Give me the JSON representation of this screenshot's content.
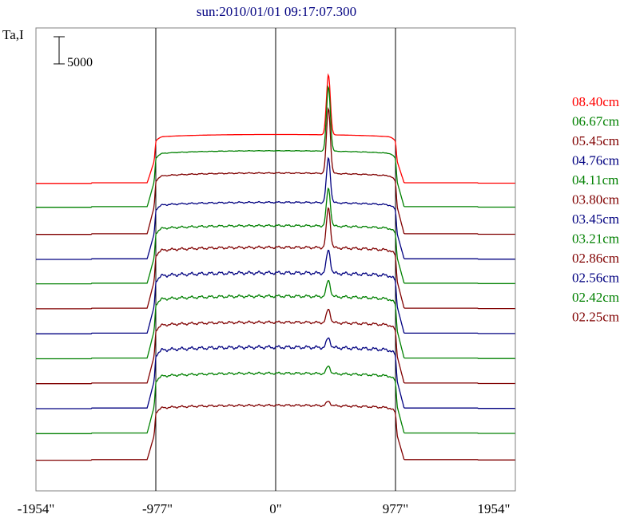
{
  "chart_data": {
    "type": "line",
    "title": "sun:2010/01/01 09:17:07.300",
    "ylabel": "Ta,I",
    "xlabel": "",
    "x_ticks": [
      "-1954\"",
      "-977\"",
      "0\"",
      "977\"",
      "1954\""
    ],
    "x_tick_values": [
      -1954,
      -977,
      0,
      977,
      1954
    ],
    "xlim": [
      -1954,
      1954
    ],
    "scale_bar_label": "5000",
    "scale_bar_value": 5000,
    "grid": false,
    "legend_placement": "right",
    "series": [
      {
        "name": "08.40cm",
        "color": "#ff0000",
        "baseline": 0,
        "disk": 8900,
        "peak": 20000,
        "bumps": 0
      },
      {
        "name": "06.67cm",
        "color": "#008000",
        "baseline": -4400,
        "disk": 10300,
        "peak": 22200,
        "bumps": 0.2
      },
      {
        "name": "05.45cm",
        "color": "#800000",
        "baseline": -9400,
        "disk": 11200,
        "peak": 23200,
        "bumps": 0.4
      },
      {
        "name": "04.76cm",
        "color": "#000080",
        "baseline": -14000,
        "disk": 10400,
        "peak": 18700,
        "bumps": 0.6
      },
      {
        "name": "04.11cm",
        "color": "#008000",
        "baseline": -18500,
        "disk": 10600,
        "peak": 17600,
        "bumps": 0.8
      },
      {
        "name": "03.80cm",
        "color": "#800000",
        "baseline": -23100,
        "disk": 11200,
        "peak": 18600,
        "bumps": 1.0
      },
      {
        "name": "03.45cm",
        "color": "#000080",
        "baseline": -27700,
        "disk": 11100,
        "peak": 15400,
        "bumps": 1.3
      },
      {
        "name": "03.21cm",
        "color": "#008000",
        "baseline": -32300,
        "disk": 11400,
        "peak": 14400,
        "bumps": 1.1
      },
      {
        "name": "02.86cm",
        "color": "#800000",
        "baseline": -36900,
        "disk": 11200,
        "peak": 13700,
        "bumps": 1.0
      },
      {
        "name": "02.56cm",
        "color": "#000080",
        "baseline": -41500,
        "disk": 11200,
        "peak": 13000,
        "bumps": 1.3
      },
      {
        "name": "02.42cm",
        "color": "#008000",
        "baseline": -46100,
        "disk": 11000,
        "peak": 12400,
        "bumps": 0.9
      },
      {
        "name": "02.25cm",
        "color": "#800000",
        "baseline": -51000,
        "disk": 10000,
        "peak": 10800,
        "bumps": 0.8
      }
    ]
  }
}
